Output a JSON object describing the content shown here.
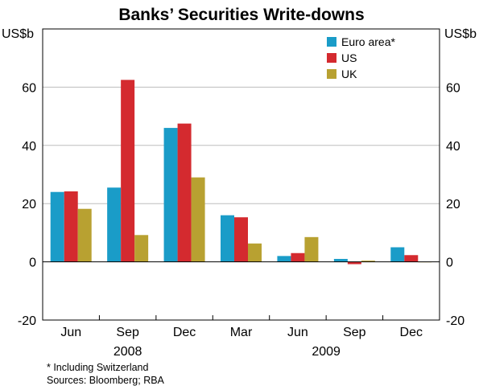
{
  "chart_data": {
    "type": "bar",
    "title": "Banks’ Securities Write-downs",
    "ylabel_left": "US$b",
    "ylabel_right": "US$b",
    "ylim": [
      -20,
      80
    ],
    "yticks": [
      -20,
      0,
      20,
      40,
      60
    ],
    "categories": [
      "Jun",
      "Sep",
      "Dec",
      "Mar",
      "Jun",
      "Sep",
      "Dec"
    ],
    "year_labels": [
      {
        "label": "2008",
        "category_index": 1
      },
      {
        "label": "2009",
        "category_index": 4.5
      }
    ],
    "series": [
      {
        "name": "Euro area*",
        "color": "#1a9cc8",
        "values": [
          24,
          25.5,
          46,
          16,
          2,
          1,
          5
        ]
      },
      {
        "name": "US",
        "color": "#d42a2f",
        "values": [
          24.2,
          62.5,
          47.5,
          15.3,
          3,
          -0.8,
          2.3
        ]
      },
      {
        "name": "UK",
        "color": "#b8a131",
        "values": [
          18.2,
          9.2,
          29,
          6.3,
          8.5,
          0.4,
          0
        ]
      }
    ],
    "legend_position": "top-right",
    "grid": true
  },
  "footnote": "*   Including Switzerland",
  "sources": "Sources: Bloomberg; RBA"
}
